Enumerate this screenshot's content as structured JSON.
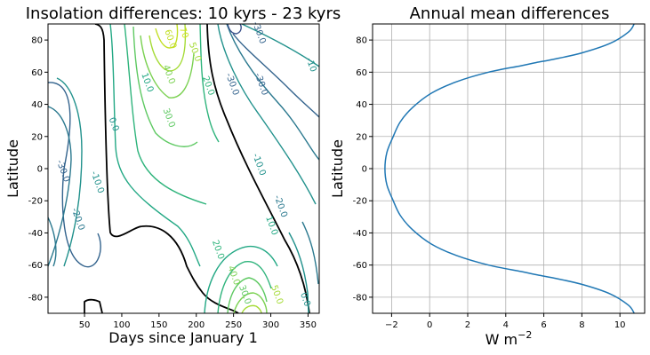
{
  "chart_data": [
    {
      "type": "contour",
      "title": "Insolation differences: 10 kyrs - 23 kyrs",
      "xlabel": "Days since January 1",
      "ylabel": "Latitude",
      "xlim": [
        1,
        365
      ],
      "ylim": [
        -90,
        90
      ],
      "xticks": [
        50,
        100,
        150,
        200,
        250,
        300,
        350
      ],
      "yticks": [
        -80,
        -60,
        -40,
        -20,
        0,
        20,
        40,
        60,
        80
      ],
      "colormap": "viridis",
      "contour_levels": [
        -40,
        -30,
        -20,
        -10,
        0,
        10,
        20,
        30,
        40,
        50,
        60,
        70
      ],
      "zero_contour_color": "#000000",
      "contour_labels": [
        {
          "text": "-30.0",
          "x": 281,
          "y": 84,
          "level": -30
        },
        {
          "text": "-10",
          "x": 351,
          "y": 64,
          "level": -10
        },
        {
          "text": "-30.0",
          "x": 245,
          "y": 52,
          "level": -30
        },
        {
          "text": "-30.0",
          "x": 284,
          "y": 52,
          "level": -30
        },
        {
          "text": "-10.0",
          "x": 281,
          "y": 2,
          "level": -10
        },
        {
          "text": "-20.0",
          "x": 310,
          "y": -24,
          "level": -20
        },
        {
          "text": "10.0",
          "x": 298,
          "y": -36,
          "level": 10
        },
        {
          "text": "20.0",
          "x": 226,
          "y": -51,
          "level": 20
        },
        {
          "text": "40.0",
          "x": 247,
          "y": -67,
          "level": 40
        },
        {
          "text": "30.0",
          "x": 262,
          "y": -79,
          "level": 30
        },
        {
          "text": "50.0",
          "x": 305,
          "y": -79,
          "level": 50
        },
        {
          "text": "0.0",
          "x": 343,
          "y": -82,
          "level": 0
        },
        {
          "text": "70",
          "x": 180,
          "y": 84,
          "level": 70
        },
        {
          "text": "60.0",
          "x": 162,
          "y": 80,
          "level": 60
        },
        {
          "text": "50.0",
          "x": 195,
          "y": 72,
          "level": 50
        },
        {
          "text": "40.0",
          "x": 160,
          "y": 58,
          "level": 40
        },
        {
          "text": "20.0",
          "x": 213,
          "y": 51,
          "level": 20
        },
        {
          "text": "10.0",
          "x": 131,
          "y": 53,
          "level": 10
        },
        {
          "text": "30.0",
          "x": 160,
          "y": 31,
          "level": 30
        },
        {
          "text": "0.0",
          "x": 86,
          "y": 27,
          "level": 0
        },
        {
          "text": "-30.0",
          "x": 18,
          "y": -2,
          "level": -30
        },
        {
          "text": "-10.0",
          "x": 64,
          "y": -9,
          "level": -10
        },
        {
          "text": "-20.0",
          "x": 38,
          "y": -32,
          "level": -20
        }
      ]
    },
    {
      "type": "line",
      "title": "Annual mean differences",
      "xlabel": "W m",
      "xlabel_superscript": "−2",
      "ylabel": "Latitude",
      "xlim": [
        -3,
        11.3
      ],
      "ylim": [
        -90,
        90
      ],
      "xticks": [
        -2,
        0,
        2,
        4,
        6,
        8,
        10
      ],
      "yticks": [
        -80,
        -60,
        -40,
        -20,
        0,
        20,
        40,
        60,
        80
      ],
      "grid": true,
      "series": [
        {
          "color": "#1f77b4",
          "x": [
            10.75,
            10.45,
            9.5,
            8.0,
            6.5,
            5.6,
            4.8,
            3.1,
            1.4,
            0.1,
            -0.9,
            -1.55,
            -1.95,
            -2.25,
            -2.35,
            -2.25,
            -1.95,
            -1.55,
            -0.9,
            0.1,
            1.4,
            3.1,
            4.8,
            5.6,
            6.5,
            8.0,
            9.5,
            10.45,
            10.75
          ],
          "y": [
            -90,
            -85,
            -78,
            -72,
            -68,
            -66,
            -64,
            -60,
            -54,
            -47,
            -38,
            -29,
            -19,
            -10,
            0,
            10,
            19,
            29,
            38,
            47,
            54,
            60,
            64,
            66,
            68,
            72,
            78,
            85,
            90
          ]
        }
      ]
    }
  ]
}
